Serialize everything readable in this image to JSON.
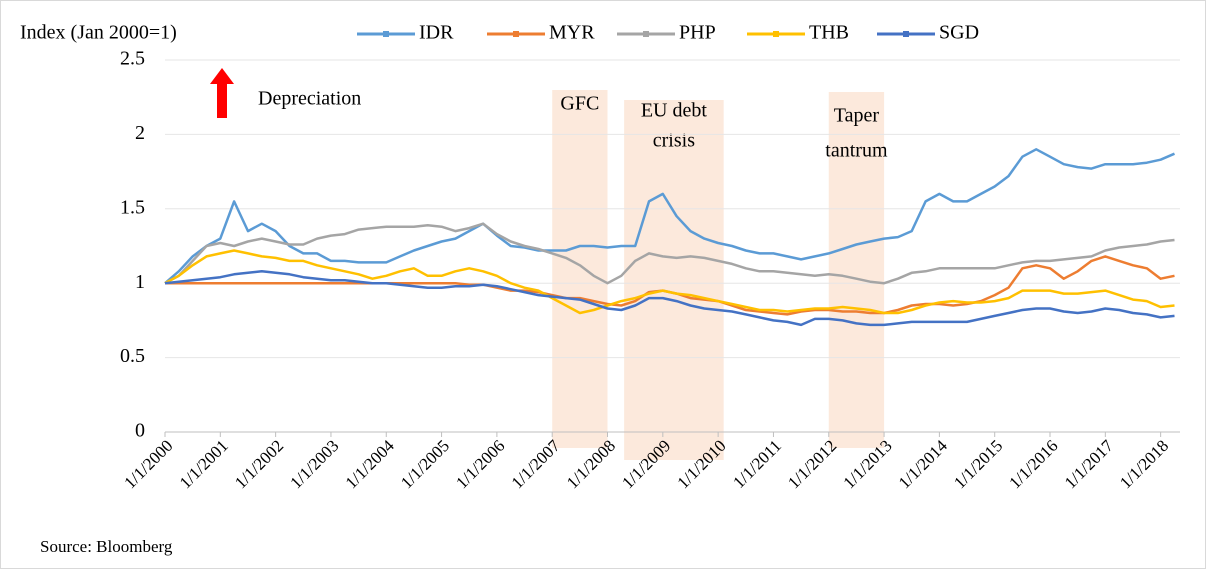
{
  "chart_data": {
    "type": "line",
    "ylabel": "Index (Jan 2000=1)",
    "source": "Source: Bloomberg",
    "annotation": "Depreciation",
    "shaded_periods": [
      {
        "label": [
          "GFC"
        ],
        "start": 2007,
        "end": 2008
      },
      {
        "label": [
          "EU debt",
          "crisis"
        ],
        "start": 2008.3,
        "end": 2010.1
      },
      {
        "label": [
          "Taper",
          "tantrum"
        ],
        "start": 2012,
        "end": 2013
      }
    ],
    "x": [
      2000,
      2000.25,
      2000.5,
      2000.75,
      2001,
      2001.25,
      2001.5,
      2001.75,
      2002,
      2002.25,
      2002.5,
      2002.75,
      2003,
      2003.25,
      2003.5,
      2003.75,
      2004,
      2004.25,
      2004.5,
      2004.75,
      2005,
      2005.25,
      2005.5,
      2005.75,
      2006,
      2006.25,
      2006.5,
      2006.75,
      2007,
      2007.25,
      2007.5,
      2007.75,
      2008,
      2008.25,
      2008.5,
      2008.75,
      2009,
      2009.25,
      2009.5,
      2009.75,
      2010,
      2010.25,
      2010.5,
      2010.75,
      2011,
      2011.25,
      2011.5,
      2011.75,
      2012,
      2012.25,
      2012.5,
      2012.75,
      2013,
      2013.25,
      2013.5,
      2013.75,
      2014,
      2014.25,
      2014.5,
      2014.75,
      2015,
      2015.25,
      2015.5,
      2015.75,
      2016,
      2016.25,
      2016.5,
      2016.75,
      2017,
      2017.25,
      2017.5,
      2017.75,
      2018,
      2018.25
    ],
    "xlim": [
      2000,
      2018.35
    ],
    "xticks": [
      {
        "value": 2000,
        "label": "1/1/2000"
      },
      {
        "value": 2001,
        "label": "1/1/2001"
      },
      {
        "value": 2002,
        "label": "1/1/2002"
      },
      {
        "value": 2003,
        "label": "1/1/2003"
      },
      {
        "value": 2004,
        "label": "1/1/2004"
      },
      {
        "value": 2005,
        "label": "1/1/2005"
      },
      {
        "value": 2006,
        "label": "1/1/2006"
      },
      {
        "value": 2007,
        "label": "1/1/2007"
      },
      {
        "value": 2008,
        "label": "1/1/2008"
      },
      {
        "value": 2009,
        "label": "1/1/2009"
      },
      {
        "value": 2010,
        "label": "1/1/2010"
      },
      {
        "value": 2011,
        "label": "1/1/2011"
      },
      {
        "value": 2012,
        "label": "1/1/2012"
      },
      {
        "value": 2013,
        "label": "1/1/2013"
      },
      {
        "value": 2014,
        "label": "1/1/2014"
      },
      {
        "value": 2015,
        "label": "1/1/2015"
      },
      {
        "value": 2016,
        "label": "1/1/2016"
      },
      {
        "value": 2017,
        "label": "1/1/2017"
      },
      {
        "value": 2018,
        "label": "1/1/2018"
      }
    ],
    "ylim": [
      0,
      2.5
    ],
    "yticks": [
      0,
      0.5,
      1,
      1.5,
      2,
      2.5
    ],
    "grid": true,
    "legend": "top",
    "series": [
      {
        "name": "IDR",
        "color": "#5b9bd5",
        "values": [
          1.0,
          1.08,
          1.18,
          1.25,
          1.3,
          1.55,
          1.35,
          1.4,
          1.35,
          1.25,
          1.2,
          1.2,
          1.15,
          1.15,
          1.14,
          1.14,
          1.14,
          1.18,
          1.22,
          1.25,
          1.28,
          1.3,
          1.35,
          1.4,
          1.32,
          1.25,
          1.24,
          1.22,
          1.22,
          1.22,
          1.25,
          1.25,
          1.24,
          1.25,
          1.25,
          1.55,
          1.6,
          1.45,
          1.35,
          1.3,
          1.27,
          1.25,
          1.22,
          1.2,
          1.2,
          1.18,
          1.16,
          1.18,
          1.2,
          1.23,
          1.26,
          1.28,
          1.3,
          1.31,
          1.35,
          1.55,
          1.6,
          1.55,
          1.55,
          1.6,
          1.65,
          1.72,
          1.85,
          1.9,
          1.85,
          1.8,
          1.78,
          1.77,
          1.8,
          1.8,
          1.8,
          1.81,
          1.83,
          1.87
        ]
      },
      {
        "name": "MYR",
        "color": "#ed7d31",
        "values": [
          1.0,
          1.0,
          1.0,
          1.0,
          1.0,
          1.0,
          1.0,
          1.0,
          1.0,
          1.0,
          1.0,
          1.0,
          1.0,
          1.0,
          1.0,
          1.0,
          1.0,
          1.0,
          1.0,
          1.0,
          1.0,
          1.0,
          0.99,
          0.99,
          0.97,
          0.95,
          0.95,
          0.94,
          0.92,
          0.9,
          0.9,
          0.88,
          0.86,
          0.85,
          0.88,
          0.94,
          0.95,
          0.93,
          0.9,
          0.89,
          0.88,
          0.85,
          0.82,
          0.81,
          0.8,
          0.79,
          0.81,
          0.82,
          0.82,
          0.81,
          0.81,
          0.8,
          0.8,
          0.82,
          0.85,
          0.86,
          0.86,
          0.85,
          0.86,
          0.88,
          0.92,
          0.97,
          1.1,
          1.12,
          1.1,
          1.03,
          1.08,
          1.15,
          1.18,
          1.15,
          1.12,
          1.1,
          1.03,
          1.05
        ]
      },
      {
        "name": "PHP",
        "color": "#a5a5a5",
        "values": [
          1.0,
          1.05,
          1.15,
          1.25,
          1.27,
          1.25,
          1.28,
          1.3,
          1.28,
          1.26,
          1.26,
          1.3,
          1.32,
          1.33,
          1.36,
          1.37,
          1.38,
          1.38,
          1.38,
          1.39,
          1.38,
          1.35,
          1.37,
          1.4,
          1.33,
          1.28,
          1.25,
          1.23,
          1.2,
          1.17,
          1.12,
          1.05,
          1.0,
          1.05,
          1.15,
          1.2,
          1.18,
          1.17,
          1.18,
          1.17,
          1.15,
          1.13,
          1.1,
          1.08,
          1.08,
          1.07,
          1.06,
          1.05,
          1.06,
          1.05,
          1.03,
          1.01,
          1.0,
          1.03,
          1.07,
          1.08,
          1.1,
          1.1,
          1.1,
          1.1,
          1.1,
          1.12,
          1.14,
          1.15,
          1.15,
          1.16,
          1.17,
          1.18,
          1.22,
          1.24,
          1.25,
          1.26,
          1.28,
          1.29
        ]
      },
      {
        "name": "THB",
        "color": "#ffc000",
        "values": [
          1.0,
          1.05,
          1.12,
          1.18,
          1.2,
          1.22,
          1.2,
          1.18,
          1.17,
          1.15,
          1.15,
          1.12,
          1.1,
          1.08,
          1.06,
          1.03,
          1.05,
          1.08,
          1.1,
          1.05,
          1.05,
          1.08,
          1.1,
          1.08,
          1.05,
          1.0,
          0.97,
          0.95,
          0.9,
          0.85,
          0.8,
          0.82,
          0.85,
          0.88,
          0.9,
          0.93,
          0.95,
          0.93,
          0.92,
          0.9,
          0.88,
          0.86,
          0.84,
          0.82,
          0.82,
          0.81,
          0.82,
          0.83,
          0.83,
          0.84,
          0.83,
          0.82,
          0.8,
          0.8,
          0.82,
          0.85,
          0.87,
          0.88,
          0.87,
          0.87,
          0.88,
          0.9,
          0.95,
          0.95,
          0.95,
          0.93,
          0.93,
          0.94,
          0.95,
          0.92,
          0.89,
          0.88,
          0.84,
          0.85
        ]
      },
      {
        "name": "SGD",
        "color": "#4472c4",
        "values": [
          1.0,
          1.01,
          1.02,
          1.03,
          1.04,
          1.06,
          1.07,
          1.08,
          1.07,
          1.06,
          1.04,
          1.03,
          1.02,
          1.02,
          1.01,
          1.0,
          1.0,
          0.99,
          0.98,
          0.97,
          0.97,
          0.98,
          0.98,
          0.99,
          0.98,
          0.96,
          0.94,
          0.92,
          0.91,
          0.9,
          0.89,
          0.86,
          0.83,
          0.82,
          0.85,
          0.9,
          0.9,
          0.88,
          0.85,
          0.83,
          0.82,
          0.81,
          0.79,
          0.77,
          0.75,
          0.74,
          0.72,
          0.76,
          0.76,
          0.75,
          0.73,
          0.72,
          0.72,
          0.73,
          0.74,
          0.74,
          0.74,
          0.74,
          0.74,
          0.76,
          0.78,
          0.8,
          0.82,
          0.83,
          0.83,
          0.81,
          0.8,
          0.81,
          0.83,
          0.82,
          0.8,
          0.79,
          0.77,
          0.78
        ]
      }
    ]
  }
}
